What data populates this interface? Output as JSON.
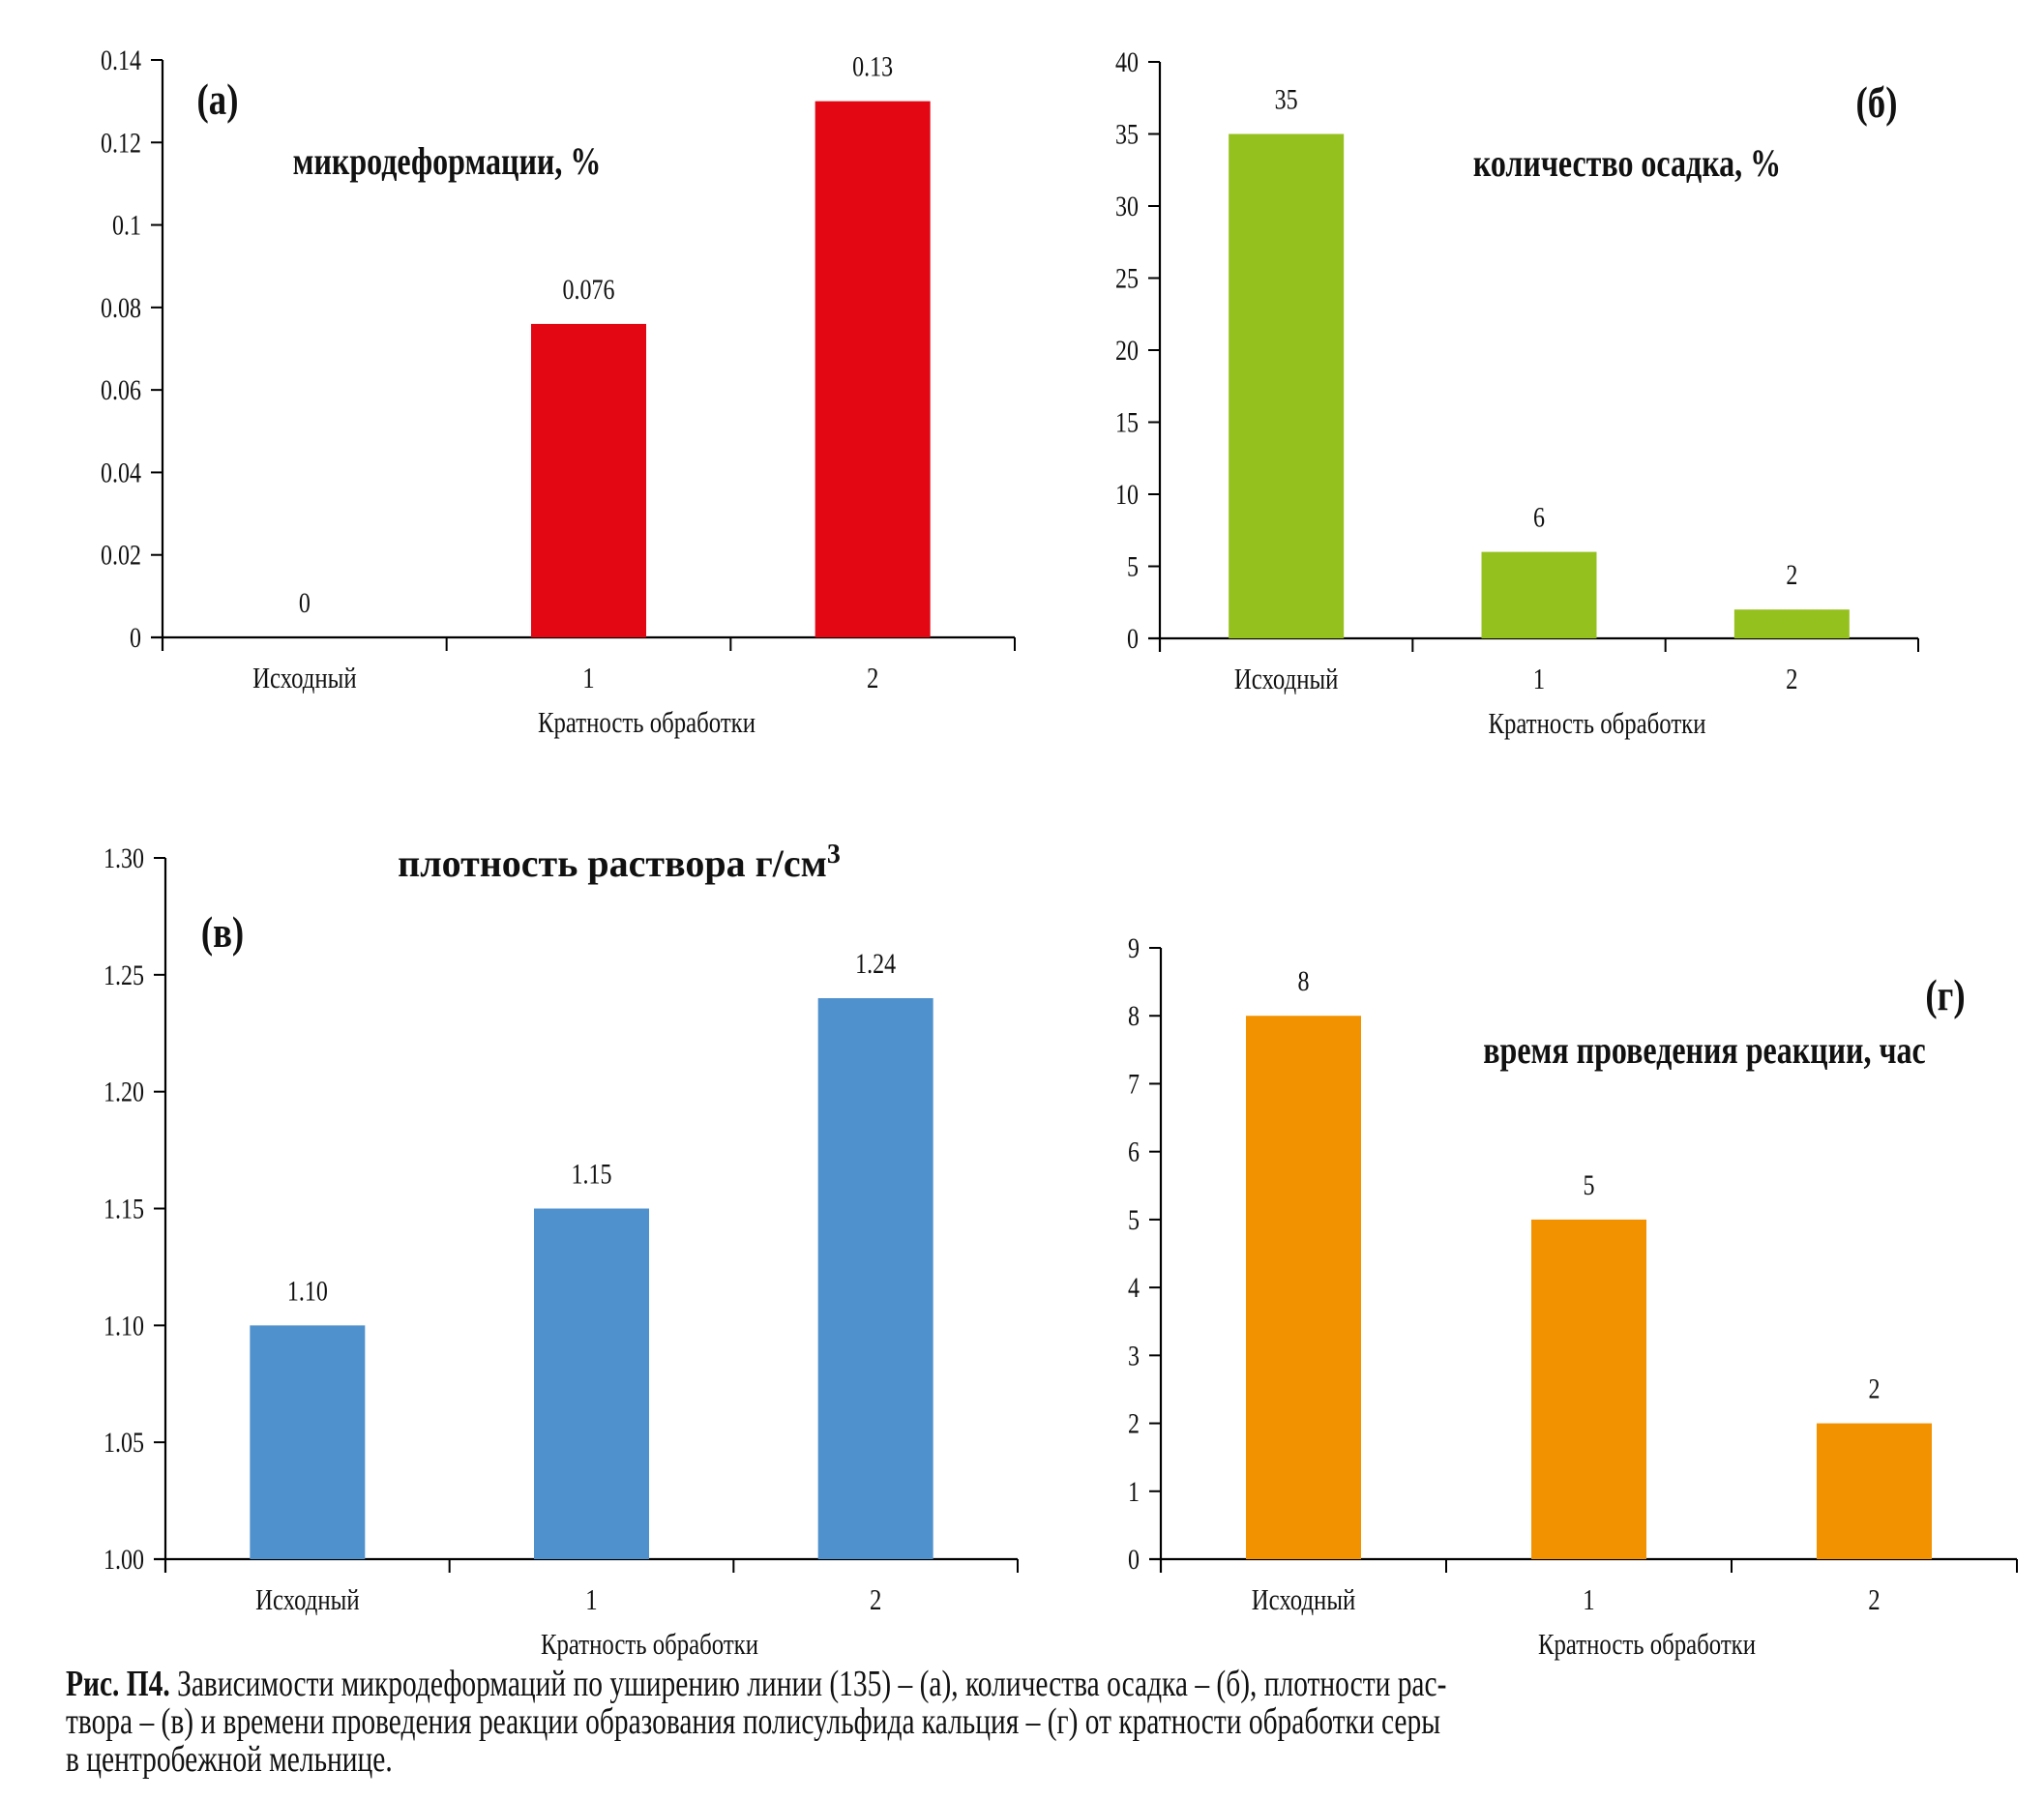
{
  "chart_data": [
    {
      "id": "a",
      "type": "bar",
      "panel_letter": "(а)",
      "title": "микродеформации, %",
      "title_sup": "",
      "xlabel": "Кратность обработки",
      "ylabel": "",
      "categories": [
        "Исходный",
        "1",
        "2"
      ],
      "values": [
        0,
        0.076,
        0.13
      ],
      "value_labels": [
        "0",
        "0.076",
        "0.13"
      ],
      "ylim": [
        0,
        0.14
      ],
      "yticks": [
        0,
        0.02,
        0.04,
        0.06,
        0.08,
        0.1,
        0.12,
        0.14
      ],
      "ytick_labels": [
        "0",
        "0.02",
        "0.04",
        "0.06",
        "0.08",
        "0.1",
        "0.12",
        "0.14"
      ],
      "color": "#E30613",
      "grid": false,
      "legend": "none"
    },
    {
      "id": "b",
      "type": "bar",
      "panel_letter": "(б)",
      "title": "количество осадка, %",
      "title_sup": "",
      "xlabel": "Кратность обработки",
      "ylabel": "",
      "categories": [
        "Исходный",
        "1",
        "2"
      ],
      "values": [
        35,
        6,
        2
      ],
      "value_labels": [
        "35",
        "6",
        "2"
      ],
      "ylim": [
        0,
        40
      ],
      "yticks": [
        0,
        5,
        10,
        15,
        20,
        25,
        30,
        35,
        40
      ],
      "ytick_labels": [
        "0",
        "5",
        "10",
        "15",
        "20",
        "25",
        "30",
        "35",
        "40"
      ],
      "color": "#95C11F",
      "grid": false,
      "legend": "none"
    },
    {
      "id": "v",
      "type": "bar",
      "panel_letter": "(в)",
      "title": "плотность раствора г/см",
      "title_sup": "3",
      "xlabel": "Кратность обработки",
      "ylabel": "",
      "categories": [
        "Исходный",
        "1",
        "2"
      ],
      "values": [
        1.1,
        1.15,
        1.24
      ],
      "value_labels": [
        "1.10",
        "1.15",
        "1.24"
      ],
      "ylim": [
        1.0,
        1.3
      ],
      "yticks": [
        1.0,
        1.05,
        1.1,
        1.15,
        1.2,
        1.25,
        1.3
      ],
      "ytick_labels": [
        "1.00",
        "1.05",
        "1.10",
        "1.15",
        "1.20",
        "1.25",
        "1.30"
      ],
      "color": "#4F91CD",
      "grid": false,
      "legend": "none"
    },
    {
      "id": "g",
      "type": "bar",
      "panel_letter": "(г)",
      "title": "время проведения реакции, час",
      "title_sup": "",
      "xlabel": "Кратность обработки",
      "ylabel": "",
      "categories": [
        "Исходный",
        "1",
        "2"
      ],
      "values": [
        8,
        5,
        2
      ],
      "value_labels": [
        "8",
        "5",
        "2"
      ],
      "ylim": [
        0,
        9
      ],
      "yticks": [
        0,
        1,
        2,
        3,
        4,
        5,
        6,
        7,
        8,
        9
      ],
      "ytick_labels": [
        "0",
        "1",
        "2",
        "3",
        "4",
        "5",
        "6",
        "7",
        "8",
        "9"
      ],
      "color": "#F39200",
      "grid": false,
      "legend": "none"
    }
  ],
  "caption": {
    "label": "Рис. П4.",
    "line1": " Зависимости микродеформаций по уширению линии (135) – (а), количества осадка – (б), плотности рас-",
    "line2": "твора – (в) и времени проведения реакции образования полисульфида кальция – (г) от кратности обработки серы",
    "line3": "в центробежной мельнице."
  }
}
